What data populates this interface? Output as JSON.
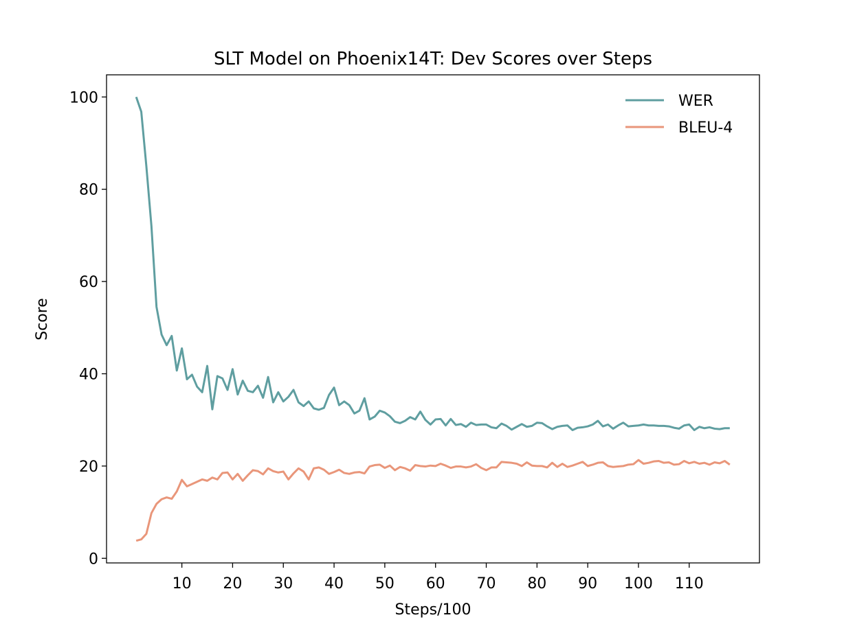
{
  "chart_data": {
    "type": "line",
    "title": "SLT Model on Phoenix14T: Dev Scores over Steps",
    "x_label": "Steps/100",
    "y_label": "Score",
    "x": [
      1,
      2,
      3,
      4,
      5,
      6,
      7,
      8,
      9,
      10,
      11,
      12,
      13,
      14,
      15,
      16,
      17,
      18,
      19,
      20,
      21,
      22,
      23,
      24,
      25,
      26,
      27,
      28,
      29,
      30,
      31,
      32,
      33,
      34,
      35,
      36,
      37,
      38,
      39,
      40,
      41,
      42,
      43,
      44,
      45,
      46,
      47,
      48,
      49,
      50,
      51,
      52,
      53,
      54,
      55,
      56,
      57,
      58,
      59,
      60,
      61,
      62,
      63,
      64,
      65,
      66,
      67,
      68,
      69,
      70,
      71,
      72,
      73,
      74,
      75,
      76,
      77,
      78,
      79,
      80,
      81,
      82,
      83,
      84,
      85,
      86,
      87,
      88,
      89,
      90,
      91,
      92,
      93,
      94,
      95,
      96,
      97,
      98,
      99,
      100,
      101,
      102,
      103,
      104,
      105,
      106,
      107,
      108,
      109,
      110,
      111,
      112,
      113,
      114,
      115,
      116,
      117,
      118
    ],
    "series": [
      {
        "name": "WER",
        "color": "#5f9ea0",
        "values": [
          100,
          96.8,
          85,
          72,
          54.5,
          48.5,
          46.2,
          48.2,
          40.7,
          45.5,
          38.8,
          39.8,
          37.2,
          36,
          41.7,
          32.3,
          39.5,
          39,
          36.5,
          41,
          35.5,
          38.5,
          36.3,
          36,
          37.4,
          34.8,
          39.3,
          33.8,
          36,
          34,
          35,
          36.5,
          33.8,
          33,
          34,
          32.5,
          32.2,
          32.6,
          35.4,
          37,
          33.2,
          34,
          33.2,
          31.4,
          32,
          34.7,
          30.1,
          30.7,
          32,
          31.6,
          30.8,
          29.6,
          29.3,
          29.8,
          30.6,
          30.1,
          31.8,
          30,
          29,
          30.1,
          30.2,
          28.8,
          30.2,
          28.9,
          29.1,
          28.5,
          29.4,
          28.9,
          29,
          29,
          28.4,
          28.2,
          29.2,
          28.7,
          27.9,
          28.5,
          29.1,
          28.5,
          28.7,
          29.4,
          29.3,
          28.6,
          28,
          28.5,
          28.7,
          28.8,
          27.8,
          28.3,
          28.4,
          28.6,
          29,
          29.8,
          28.6,
          29,
          28.1,
          28.8,
          29.4,
          28.6,
          28.7,
          28.8,
          29,
          28.8,
          28.8,
          28.7,
          28.7,
          28.6,
          28.3,
          28.1,
          28.8,
          29,
          27.8,
          28.5,
          28.2,
          28.4,
          28.1,
          28,
          28.2,
          28.2
        ]
      },
      {
        "name": "BLEU-4",
        "color": "#e9967a",
        "values": [
          3.8,
          4.1,
          5.3,
          9.8,
          11.8,
          12.8,
          13.2,
          12.9,
          14.5,
          17,
          15.6,
          16.1,
          16.6,
          17.1,
          16.8,
          17.5,
          17.1,
          18.5,
          18.6,
          17.1,
          18.3,
          16.8,
          18,
          19.1,
          18.9,
          18.2,
          19.5,
          18.9,
          18.6,
          18.8,
          17.1,
          18.4,
          19.5,
          18.8,
          17.1,
          19.5,
          19.7,
          19.2,
          18.3,
          18.7,
          19.2,
          18.5,
          18.3,
          18.6,
          18.7,
          18.4,
          19.9,
          20.2,
          20.3,
          19.6,
          20.1,
          19.1,
          19.8,
          19.5,
          19,
          20.2,
          20,
          19.9,
          20.1,
          20,
          20.5,
          20.1,
          19.6,
          19.9,
          19.9,
          19.7,
          19.9,
          20.4,
          19.6,
          19.1,
          19.7,
          19.7,
          20.9,
          20.8,
          20.7,
          20.5,
          20,
          20.8,
          20.1,
          20,
          20,
          19.7,
          20.7,
          19.8,
          20.5,
          19.8,
          20.1,
          20.5,
          20.9,
          20,
          20.3,
          20.7,
          20.8,
          20,
          19.8,
          19.9,
          20,
          20.3,
          20.4,
          21.3,
          20.5,
          20.7,
          21,
          21.1,
          20.7,
          20.8,
          20.3,
          20.4,
          21.1,
          20.6,
          20.9,
          20.5,
          20.7,
          20.3,
          20.8,
          20.6,
          21.1,
          20.3
        ]
      }
    ],
    "xlim": [
      -4.85,
      123.85
    ],
    "ylim": [
      -1.0,
      104.8
    ],
    "xticks": [
      10,
      20,
      30,
      40,
      50,
      60,
      70,
      80,
      90,
      100,
      110
    ],
    "yticks": [
      0,
      20,
      40,
      60,
      80,
      100
    ],
    "grid": false,
    "legend": "upper right"
  }
}
